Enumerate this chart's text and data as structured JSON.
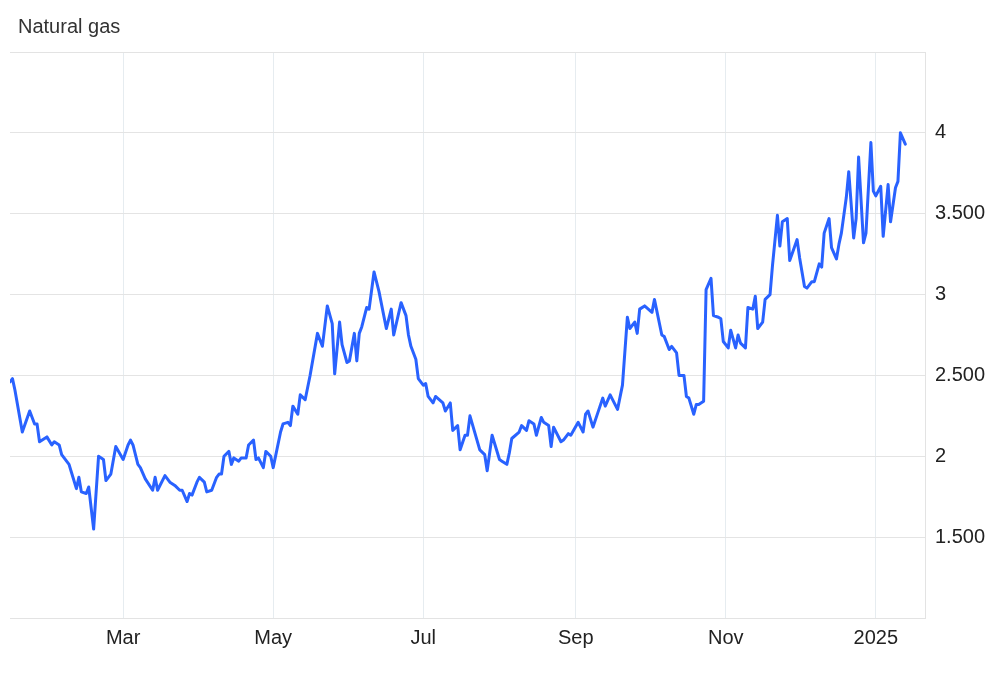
{
  "chart_data": {
    "type": "line",
    "title": "Natural gas",
    "x": [
      "2024-01-15",
      "2024-01-16",
      "2024-01-17",
      "2024-01-20",
      "2024-01-23",
      "2024-01-25",
      "2024-01-26",
      "2024-01-27",
      "2024-01-30",
      "2024-02-01",
      "2024-02-02",
      "2024-02-04",
      "2024-02-05",
      "2024-02-08",
      "2024-02-09",
      "2024-02-11",
      "2024-02-12",
      "2024-02-13",
      "2024-02-15",
      "2024-02-16",
      "2024-02-18",
      "2024-02-20",
      "2024-02-22",
      "2024-02-23",
      "2024-02-25",
      "2024-02-27",
      "2024-03-01",
      "2024-03-03",
      "2024-03-04",
      "2024-03-05",
      "2024-03-07",
      "2024-03-08",
      "2024-03-10",
      "2024-03-13",
      "2024-03-14",
      "2024-03-15",
      "2024-03-18",
      "2024-03-20",
      "2024-03-22",
      "2024-03-24",
      "2024-03-25",
      "2024-03-27",
      "2024-03-28",
      "2024-03-29",
      "2024-03-31",
      "2024-04-01",
      "2024-04-03",
      "2024-04-04",
      "2024-04-06",
      "2024-04-08",
      "2024-04-09",
      "2024-04-10",
      "2024-04-11",
      "2024-04-13",
      "2024-04-14",
      "2024-04-15",
      "2024-04-17",
      "2024-04-18",
      "2024-04-20",
      "2024-04-21",
      "2024-04-23",
      "2024-04-24",
      "2024-04-25",
      "2024-04-27",
      "2024-04-28",
      "2024-04-30",
      "2024-05-01",
      "2024-05-04",
      "2024-05-05",
      "2024-05-07",
      "2024-05-08",
      "2024-05-09",
      "2024-05-11",
      "2024-05-12",
      "2024-05-14",
      "2024-05-16",
      "2024-05-19",
      "2024-05-21",
      "2024-05-23",
      "2024-05-25",
      "2024-05-26",
      "2024-05-28",
      "2024-05-29",
      "2024-05-31",
      "2024-06-01",
      "2024-06-03",
      "2024-06-04",
      "2024-06-05",
      "2024-06-06",
      "2024-06-08",
      "2024-06-09",
      "2024-06-11",
      "2024-06-13",
      "2024-06-16",
      "2024-06-18",
      "2024-06-19",
      "2024-06-22",
      "2024-06-24",
      "2024-06-25",
      "2024-06-26",
      "2024-06-28",
      "2024-06-29",
      "2024-07-01",
      "2024-07-02",
      "2024-07-03",
      "2024-07-05",
      "2024-07-06",
      "2024-07-09",
      "2024-07-10",
      "2024-07-12",
      "2024-07-13",
      "2024-07-15",
      "2024-07-16",
      "2024-07-18",
      "2024-07-19",
      "2024-07-20",
      "2024-07-24",
      "2024-07-26",
      "2024-07-27",
      "2024-07-29",
      "2024-08-01",
      "2024-08-02",
      "2024-08-04",
      "2024-08-05",
      "2024-08-06",
      "2024-08-09",
      "2024-08-10",
      "2024-08-12",
      "2024-08-13",
      "2024-08-15",
      "2024-08-16",
      "2024-08-18",
      "2024-08-19",
      "2024-08-21",
      "2024-08-22",
      "2024-08-23",
      "2024-08-26",
      "2024-08-27",
      "2024-08-29",
      "2024-08-30",
      "2024-09-02",
      "2024-09-04",
      "2024-09-05",
      "2024-09-06",
      "2024-09-08",
      "2024-09-10",
      "2024-09-12",
      "2024-09-13",
      "2024-09-15",
      "2024-09-18",
      "2024-09-20",
      "2024-09-22",
      "2024-09-23",
      "2024-09-25",
      "2024-09-26",
      "2024-09-27",
      "2024-09-29",
      "2024-10-02",
      "2024-10-03",
      "2024-10-06",
      "2024-10-07",
      "2024-10-09",
      "2024-10-10",
      "2024-10-12",
      "2024-10-13",
      "2024-10-15",
      "2024-10-16",
      "2024-10-17",
      "2024-10-19",
      "2024-10-20",
      "2024-10-21",
      "2024-10-23",
      "2024-10-24",
      "2024-10-26",
      "2024-10-27",
      "2024-10-29",
      "2024-10-30",
      "2024-10-31",
      "2024-11-02",
      "2024-11-03",
      "2024-11-05",
      "2024-11-06",
      "2024-11-07",
      "2024-11-09",
      "2024-11-10",
      "2024-11-12",
      "2024-11-13",
      "2024-11-14",
      "2024-11-16",
      "2024-11-17",
      "2024-11-19",
      "2024-11-20",
      "2024-11-22",
      "2024-11-23",
      "2024-11-24",
      "2024-11-26",
      "2024-11-27",
      "2024-11-30",
      "2024-12-01",
      "2024-12-03",
      "2024-12-04",
      "2024-12-06",
      "2024-12-07",
      "2024-12-09",
      "2024-12-10",
      "2024-12-11",
      "2024-12-13",
      "2024-12-14",
      "2024-12-16",
      "2024-12-17",
      "2024-12-18",
      "2024-12-20",
      "2024-12-21",
      "2024-12-23",
      "2024-12-24",
      "2024-12-25",
      "2024-12-27",
      "2024-12-28",
      "2024-12-30",
      "2024-12-31",
      "2025-01-01",
      "2025-01-03",
      "2025-01-04",
      "2025-01-06",
      "2025-01-07",
      "2025-01-09",
      "2025-01-10",
      "2025-01-11",
      "2025-01-13"
    ],
    "values": [
      2.46,
      2.48,
      2.41,
      2.15,
      2.28,
      2.2,
      2.2,
      2.09,
      2.12,
      2.07,
      2.09,
      2.07,
      2.01,
      1.95,
      1.9,
      1.8,
      1.87,
      1.78,
      1.77,
      1.81,
      1.55,
      2.0,
      1.98,
      1.85,
      1.89,
      2.06,
      1.98,
      2.07,
      2.1,
      2.07,
      1.95,
      1.93,
      1.86,
      1.79,
      1.87,
      1.79,
      1.88,
      1.84,
      1.82,
      1.79,
      1.79,
      1.72,
      1.77,
      1.76,
      1.84,
      1.87,
      1.84,
      1.78,
      1.79,
      1.87,
      1.89,
      1.89,
      2.0,
      2.03,
      1.95,
      1.99,
      1.97,
      1.99,
      1.99,
      2.07,
      2.1,
      1.98,
      1.99,
      1.93,
      2.03,
      2.0,
      1.93,
      2.15,
      2.2,
      2.21,
      2.19,
      2.31,
      2.26,
      2.38,
      2.35,
      2.5,
      2.76,
      2.68,
      2.93,
      2.82,
      2.51,
      2.83,
      2.69,
      2.58,
      2.59,
      2.76,
      2.59,
      2.76,
      2.8,
      2.92,
      2.91,
      3.14,
      3.02,
      2.79,
      2.91,
      2.75,
      2.95,
      2.87,
      2.75,
      2.68,
      2.6,
      2.48,
      2.44,
      2.45,
      2.37,
      2.33,
      2.37,
      2.33,
      2.28,
      2.33,
      2.16,
      2.19,
      2.04,
      2.13,
      2.13,
      2.25,
      2.04,
      2.01,
      1.91,
      2.13,
      1.98,
      1.97,
      1.95,
      2.02,
      2.11,
      2.15,
      2.19,
      2.16,
      2.22,
      2.2,
      2.13,
      2.24,
      2.21,
      2.19,
      2.06,
      2.18,
      2.09,
      2.1,
      2.14,
      2.13,
      2.21,
      2.15,
      2.26,
      2.28,
      2.18,
      2.27,
      2.36,
      2.31,
      2.38,
      2.29,
      2.44,
      2.86,
      2.79,
      2.83,
      2.76,
      2.91,
      2.93,
      2.89,
      2.97,
      2.75,
      2.74,
      2.66,
      2.68,
      2.64,
      2.5,
      2.5,
      2.37,
      2.36,
      2.26,
      2.32,
      2.32,
      2.34,
      3.03,
      3.1,
      2.87,
      2.86,
      2.85,
      2.71,
      2.67,
      2.78,
      2.67,
      2.75,
      2.7,
      2.67,
      2.92,
      2.91,
      2.99,
      2.79,
      2.83,
      2.97,
      3.0,
      3.18,
      3.49,
      3.3,
      3.45,
      3.47,
      3.21,
      3.34,
      3.23,
      3.05,
      3.04,
      3.08,
      3.08,
      3.19,
      3.17,
      3.38,
      3.47,
      3.29,
      3.22,
      3.31,
      3.38,
      3.6,
      3.76,
      3.35,
      3.47,
      3.85,
      3.32,
      3.38,
      3.94,
      3.64,
      3.61,
      3.67,
      3.36,
      3.68,
      3.45,
      3.66,
      3.7,
      4.0,
      3.93
    ],
    "color": "#2962ff",
    "xlim": [
      "2024-01-15",
      "2025-01-21"
    ],
    "xticks": [
      {
        "value": "2024-03-01",
        "label": "Mar"
      },
      {
        "value": "2024-05-01",
        "label": "May"
      },
      {
        "value": "2024-07-01",
        "label": "Jul"
      },
      {
        "value": "2024-09-01",
        "label": "Sep"
      },
      {
        "value": "2024-11-01",
        "label": "Nov"
      },
      {
        "value": "2025-01-01",
        "label": "2025"
      }
    ],
    "ylim": [
      1,
      4.5
    ],
    "yticks": [
      {
        "value": 1.5,
        "label": "1.500"
      },
      2,
      {
        "value": 2.5,
        "label": "2.500"
      },
      3,
      {
        "value": 3.5,
        "label": "3.500"
      },
      4
    ],
    "grid": true
  }
}
